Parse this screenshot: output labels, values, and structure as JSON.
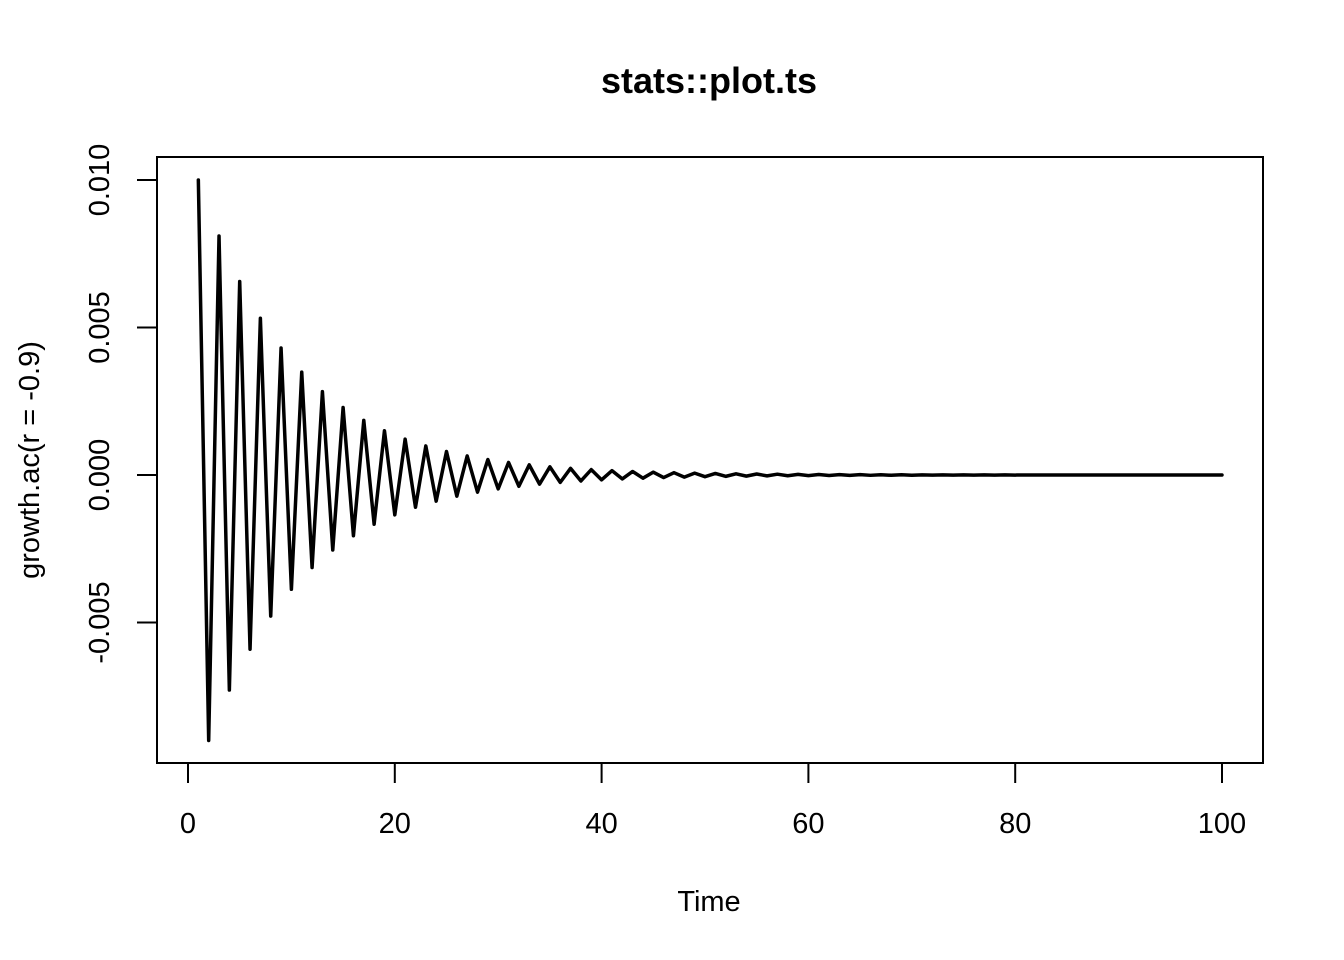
{
  "chart_data": {
    "type": "line",
    "title": "stats::plot.ts",
    "xlabel": "Time",
    "ylabel": "growth.ac(r = -0.9)",
    "xlim": [
      0,
      100
    ],
    "ylim": [
      -0.009,
      0.0108
    ],
    "x_ticks": [
      0,
      20,
      40,
      60,
      80,
      100
    ],
    "y_ticks": [
      -0.005,
      0.0,
      0.005,
      0.01
    ],
    "x_tick_labels": [
      "0",
      "20",
      "40",
      "60",
      "80",
      "100"
    ],
    "y_tick_labels": [
      "-0.005",
      "0.000",
      "0.005",
      "0.010"
    ],
    "grid": false,
    "series": [
      {
        "color": "#000000",
        "x_start": 1,
        "x_end": 100,
        "formula": "y(t) = 0.01 * (-0.9)^(t-1)"
      }
    ]
  }
}
